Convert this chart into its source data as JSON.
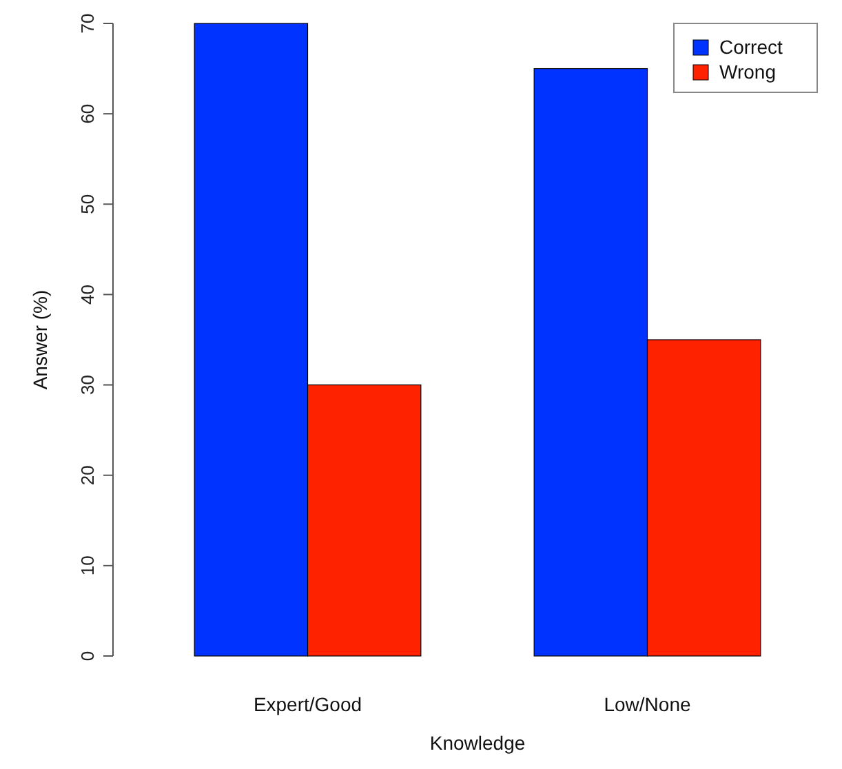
{
  "chart_data": {
    "type": "bar",
    "xlabel": "Knowledge",
    "ylabel": "Answer (%)",
    "categories": [
      "Expert/Good",
      "Low/None"
    ],
    "series": [
      {
        "name": "Correct",
        "color": "#0033ff",
        "values": [
          70,
          65
        ]
      },
      {
        "name": "Wrong",
        "color": "#ff2200",
        "values": [
          30,
          35
        ]
      }
    ],
    "ylim": [
      0,
      70
    ],
    "yticks": [
      0,
      10,
      20,
      30,
      40,
      50,
      60,
      70
    ],
    "legend": "top right",
    "grid": false
  }
}
